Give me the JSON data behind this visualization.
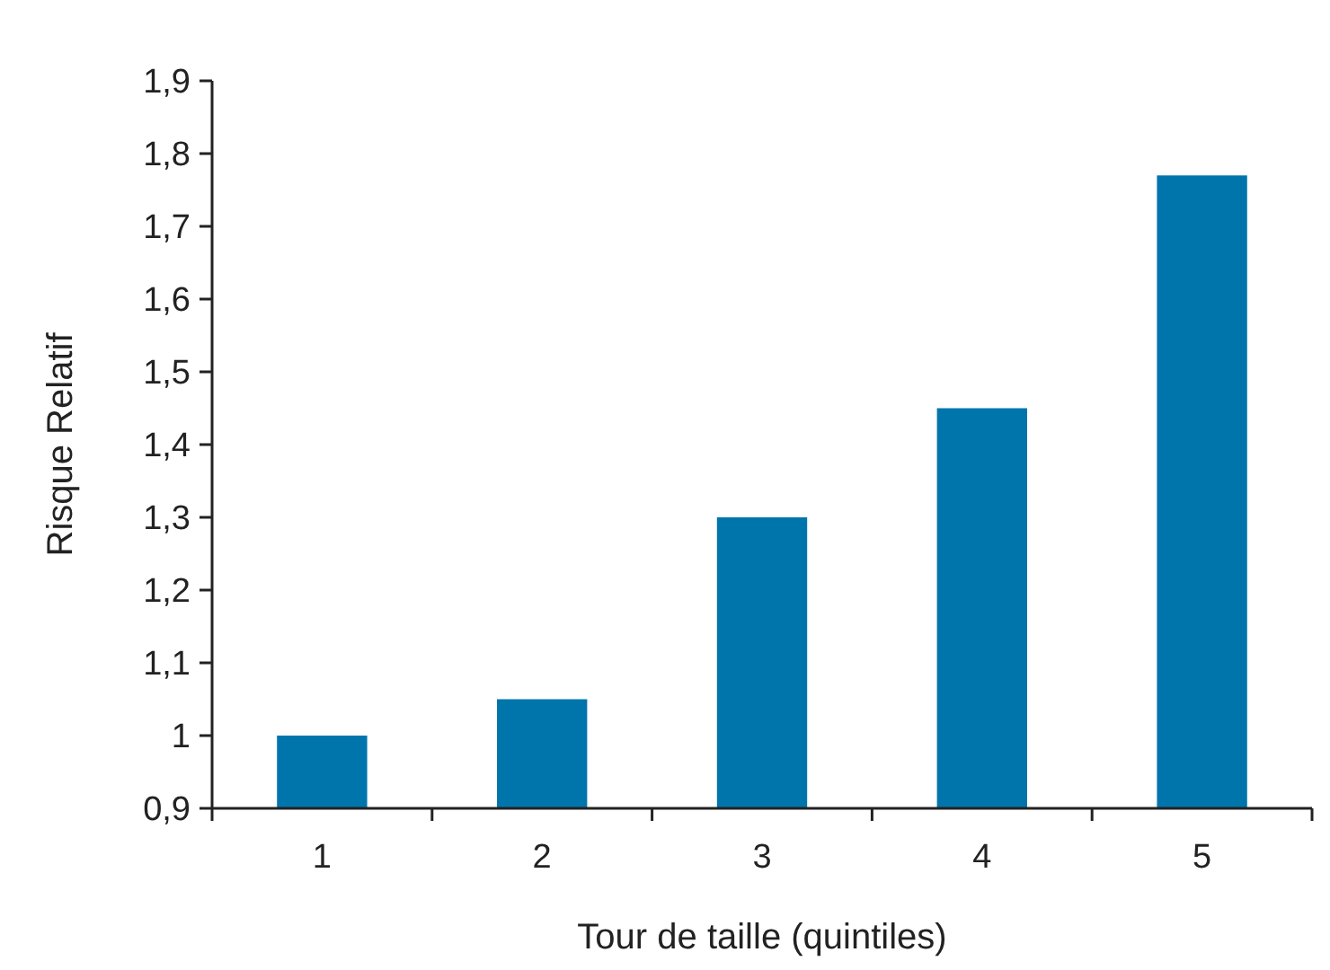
{
  "chart_data": {
    "type": "bar",
    "xlabel": "Tour de taille (quintiles)",
    "ylabel": "Risque Relatif",
    "categories": [
      "1",
      "2",
      "3",
      "4",
      "5"
    ],
    "values": [
      1.0,
      1.05,
      1.3,
      1.45,
      1.77
    ],
    "color": "#0075ac",
    "ylim": [
      0.9,
      1.9
    ],
    "yticks": [
      {
        "value": 0.9,
        "label": "0,9"
      },
      {
        "value": 1,
        "label": "1"
      },
      {
        "value": 1.1,
        "label": "1,1"
      },
      {
        "value": 1.2,
        "label": "1,2"
      },
      {
        "value": 1.3,
        "label": "1,3"
      },
      {
        "value": 1.4,
        "label": "1,4"
      },
      {
        "value": 1.5,
        "label": "1,5"
      },
      {
        "value": 1.6,
        "label": "1,6"
      },
      {
        "value": 1.7,
        "label": "1,7"
      },
      {
        "value": 1.8,
        "label": "1,8"
      },
      {
        "value": 1.9,
        "label": "1,9"
      }
    ],
    "grid": false
  }
}
